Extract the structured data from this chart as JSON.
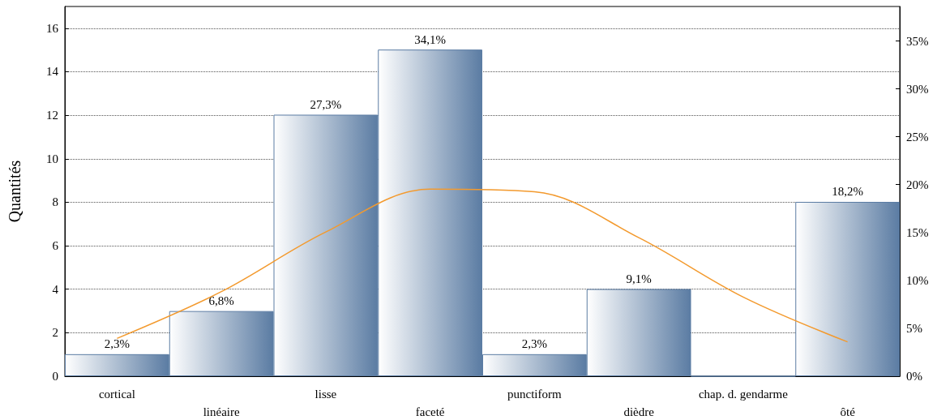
{
  "chart_data": {
    "type": "bar",
    "ylabel": "Quantités",
    "categories": [
      "cortical",
      "linéaire",
      "lisse",
      "faceté",
      "punctiform",
      "dièdre",
      "chap. d. gendarme",
      "ôté"
    ],
    "series": [
      {
        "axis": "y2",
        "color": "#5b7ca3",
        "values": [
          2.3,
          6.8,
          27.3,
          34.1,
          2.3,
          9.1,
          0,
          18.2
        ],
        "value_labels": [
          "2,3%",
          "6,8%",
          "27,3%",
          "34,1%",
          "2,3%",
          "9,1%",
          null,
          "18,2%"
        ]
      },
      {
        "type": "line",
        "color": "#f39a2e",
        "values": [
          1.74,
          3.89,
          6.63,
          8.6,
          8.48,
          6.37,
          3.64,
          1.58
        ]
      }
    ],
    "ylim": [
      0,
      17
    ],
    "yticks": [
      0,
      2,
      4,
      6,
      8,
      10,
      12,
      14,
      16
    ],
    "y2lim": [
      0,
      38.6
    ],
    "y2ticks": [
      {
        "value": 0,
        "label": "0%"
      },
      {
        "value": 5,
        "label": "5%"
      },
      {
        "value": 10,
        "label": "10%"
      },
      {
        "value": 15,
        "label": "15%"
      },
      {
        "value": 20,
        "label": "20%"
      },
      {
        "value": 25,
        "label": "25%"
      },
      {
        "value": 30,
        "label": "30%"
      },
      {
        "value": 35,
        "label": "35%"
      }
    ],
    "grid": "y",
    "marker": "none"
  }
}
